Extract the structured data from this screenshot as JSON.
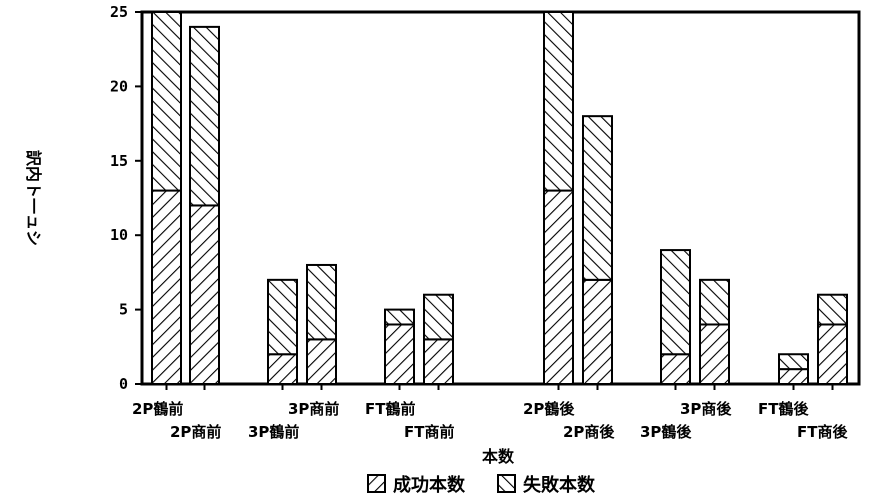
{
  "chart_data": {
    "type": "bar",
    "stacked": true,
    "categories": [
      "2P鶴前",
      "2P商前",
      "3P鶴前",
      "3P商前",
      "FT鶴前",
      "FT商前",
      "2P鶴後",
      "2P商後",
      "3P鶴後",
      "3P商後",
      "FT鶴後",
      "FT商後"
    ],
    "series": [
      {
        "name": "成功本数",
        "values": [
          13,
          12,
          2,
          3,
          4,
          3,
          13,
          7,
          2,
          4,
          1,
          4
        ],
        "pattern": "forward-hatch"
      },
      {
        "name": "失敗本数",
        "values": [
          12,
          12,
          5,
          5,
          1,
          3,
          12,
          11,
          7,
          3,
          1,
          2
        ],
        "pattern": "back-hatch"
      }
    ],
    "xlabel": "本数",
    "ylabel": "訳内ト一ュシ",
    "ylim": [
      0,
      25
    ],
    "yticks": [
      0,
      5,
      10,
      15,
      20,
      25
    ],
    "grid": false,
    "legend_position": "bottom",
    "colors": {
      "ink": "#000000",
      "background": "#ffffff"
    }
  }
}
